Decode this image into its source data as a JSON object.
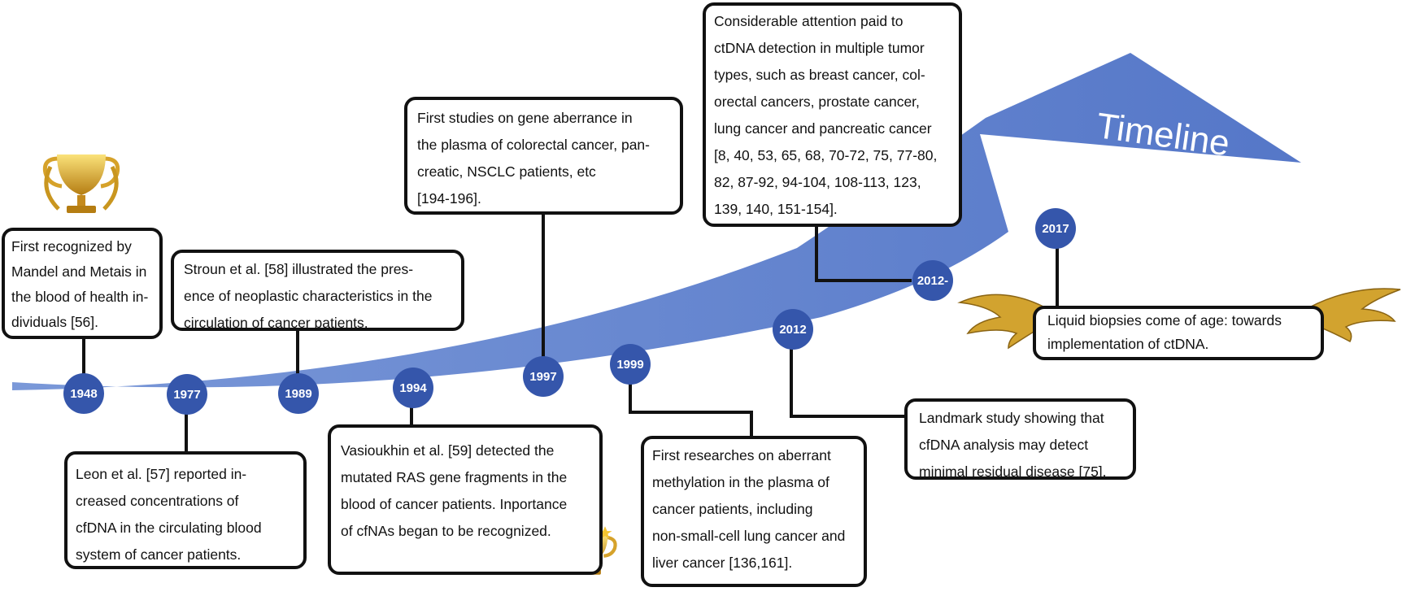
{
  "arrow_label": "Timeline",
  "colors": {
    "arrow": "#5a7fcc",
    "dot": "#3556ab",
    "box_border": "#111111"
  },
  "years": [
    "1948",
    "1977",
    "1989",
    "1994",
    "1997",
    "1999",
    "2012",
    "2012-",
    "2017"
  ],
  "events": [
    {
      "year": "1948",
      "lines": [
        "First recognized by",
        "Mandel and Metais in",
        "the blood of health in-",
        "dividuals [56]."
      ]
    },
    {
      "year": "1977",
      "lines": [
        "Leon et al. [57] reported in-",
        "creased concentrations of",
        "cfDNA in the circulating blood",
        "system of cancer patients."
      ]
    },
    {
      "year": "1989",
      "lines": [
        "Stroun et al. [58] illustrated the pres-",
        "ence of neoplastic characteristics in the",
        "circulation of cancer patients."
      ]
    },
    {
      "year": "1994",
      "lines": [
        "Vasioukhin et al. [59] detected the",
        "mutated RAS gene fragments in the",
        "blood of cancer patients. Inportance",
        "of cfNAs began to be recognized."
      ]
    },
    {
      "year": "1997",
      "lines": [
        "First studies on gene aberrance in",
        "the plasma of colorectal cancer, pan-",
        "creatic, NSCLC patients, etc",
        "[194-196]."
      ]
    },
    {
      "year": "1999",
      "lines": [
        "First researches on  aberrant",
        "methylation in the plasma of",
        "cancer patients, including",
        "non-small-cell lung cancer and",
        "liver cancer [136,161]."
      ]
    },
    {
      "year": "2012",
      "lines": [
        "Landmark study showing that",
        "cfDNA analysis may detect",
        "minimal residual disease [75]."
      ]
    },
    {
      "year": "2012-",
      "lines": [
        "Considerable attention paid to",
        "ctDNA detection in multiple tumor",
        "types, such as breast cancer, col-",
        "orectal cancers, prostate cancer,",
        "lung cancer and pancreatic cancer",
        "[8, 40, 53, 65, 68, 70-72, 75, 77-80,",
        "82, 87-92, 94-104, 108-113, 123,",
        "139, 140, 151-154]."
      ]
    },
    {
      "year": "2017",
      "lines": [
        "Liquid biopsies come of age: towards",
        "implementation of ctDNA."
      ]
    }
  ]
}
